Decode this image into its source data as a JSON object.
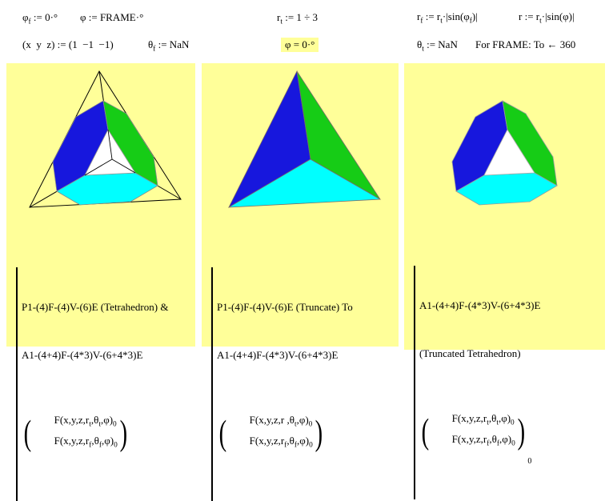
{
  "colors": {
    "panel_bg": "#ffff99",
    "highlight_bg": "#ffff99",
    "face_blue": "#1717dd",
    "face_green": "#16cc16",
    "face_cyan": "#00ffff",
    "face_white": "#ffffff",
    "wire": "#000000",
    "edge": "#9a9a9a"
  },
  "header": {
    "phi_f_def": [
      {
        "t": "φ"
      },
      {
        "s": "f"
      },
      {
        "t": " := 0·°"
      }
    ],
    "phi_def": [
      {
        "t": "φ := FRAME·°"
      }
    ],
    "r_t_def": [
      {
        "t": "r"
      },
      {
        "s": "t"
      },
      {
        "t": " := 1 ÷ 3"
      }
    ],
    "r_f_def": [
      {
        "t": "r"
      },
      {
        "s": "f"
      },
      {
        "t": " := r"
      },
      {
        "s": "t"
      },
      {
        "t": "·|sin(φ"
      },
      {
        "s": "f"
      },
      {
        "t": ")|"
      }
    ],
    "r_def": [
      {
        "t": "r := r"
      },
      {
        "s": "t"
      },
      {
        "t": "·|sin(φ)|"
      }
    ],
    "xyz_def": [
      {
        "t": "(x  y  z) := (1  −1  −1)"
      }
    ],
    "theta_f_def": [
      {
        "t": "θ"
      },
      {
        "s": "f"
      },
      {
        "t": " := NaN"
      }
    ],
    "phi_eval": [
      {
        "t": "φ = 0·°"
      }
    ],
    "theta_t_def": [
      {
        "t": "θ"
      },
      {
        "s": "t"
      },
      {
        "t": " := NaN"
      }
    ],
    "frame_note": [
      {
        "t": "For FRAME: To ← 360"
      }
    ]
  },
  "panels": [
    {
      "caption": [
        "P1-(4)F-(4)V-(6)E (Tetrahedron) &",
        "A1-(4+4)F-(4*3)V-(6+4*3)E"
      ],
      "vector": {
        "rows": [
          [
            {
              "t": "F(x,y,z,r"
            },
            {
              "s": "t"
            },
            {
              "t": ",θ"
            },
            {
              "s": "t"
            },
            {
              "t": ",φ)"
            },
            {
              "s": "0"
            }
          ],
          [
            {
              "t": "F(x,y,z,r"
            },
            {
              "s": "f"
            },
            {
              "t": ",θ"
            },
            {
              "s": "f"
            },
            {
              "t": ",φ)"
            },
            {
              "s": "0"
            }
          ]
        ],
        "outer_subscript": ""
      }
    },
    {
      "caption": [
        "P1-(4)F-(4)V-(6)E (Truncate) To",
        "A1-(4+4)F-(4*3)V-(6+4*3)E"
      ],
      "vector": {
        "rows": [
          [
            {
              "t": "F(x,y,z,r ,θ"
            },
            {
              "s": "t"
            },
            {
              "t": ",φ)"
            },
            {
              "s": "0"
            }
          ],
          [
            {
              "t": "F(x,y,z,r"
            },
            {
              "s": "f"
            },
            {
              "t": ",θ"
            },
            {
              "s": "f"
            },
            {
              "t": ",φ)"
            },
            {
              "s": "0"
            }
          ]
        ],
        "outer_subscript": ""
      }
    },
    {
      "caption": [
        "A1-(4+4)F-(4*3)V-(6+4*3)E",
        "(Truncated Tetrahedron)"
      ],
      "vector": {
        "rows": [
          [
            {
              "t": "F(x,y,z,r"
            },
            {
              "s": "t"
            },
            {
              "t": ",θ"
            },
            {
              "s": "t"
            },
            {
              "t": ",φ)"
            },
            {
              "s": "0"
            }
          ],
          [
            {
              "t": "F(x,y,z,r"
            },
            {
              "s": "f"
            },
            {
              "t": ",θ"
            },
            {
              "s": "f"
            },
            {
              "t": ",φ)"
            },
            {
              "s": "0"
            }
          ]
        ],
        "outer_subscript": "0"
      }
    }
  ]
}
